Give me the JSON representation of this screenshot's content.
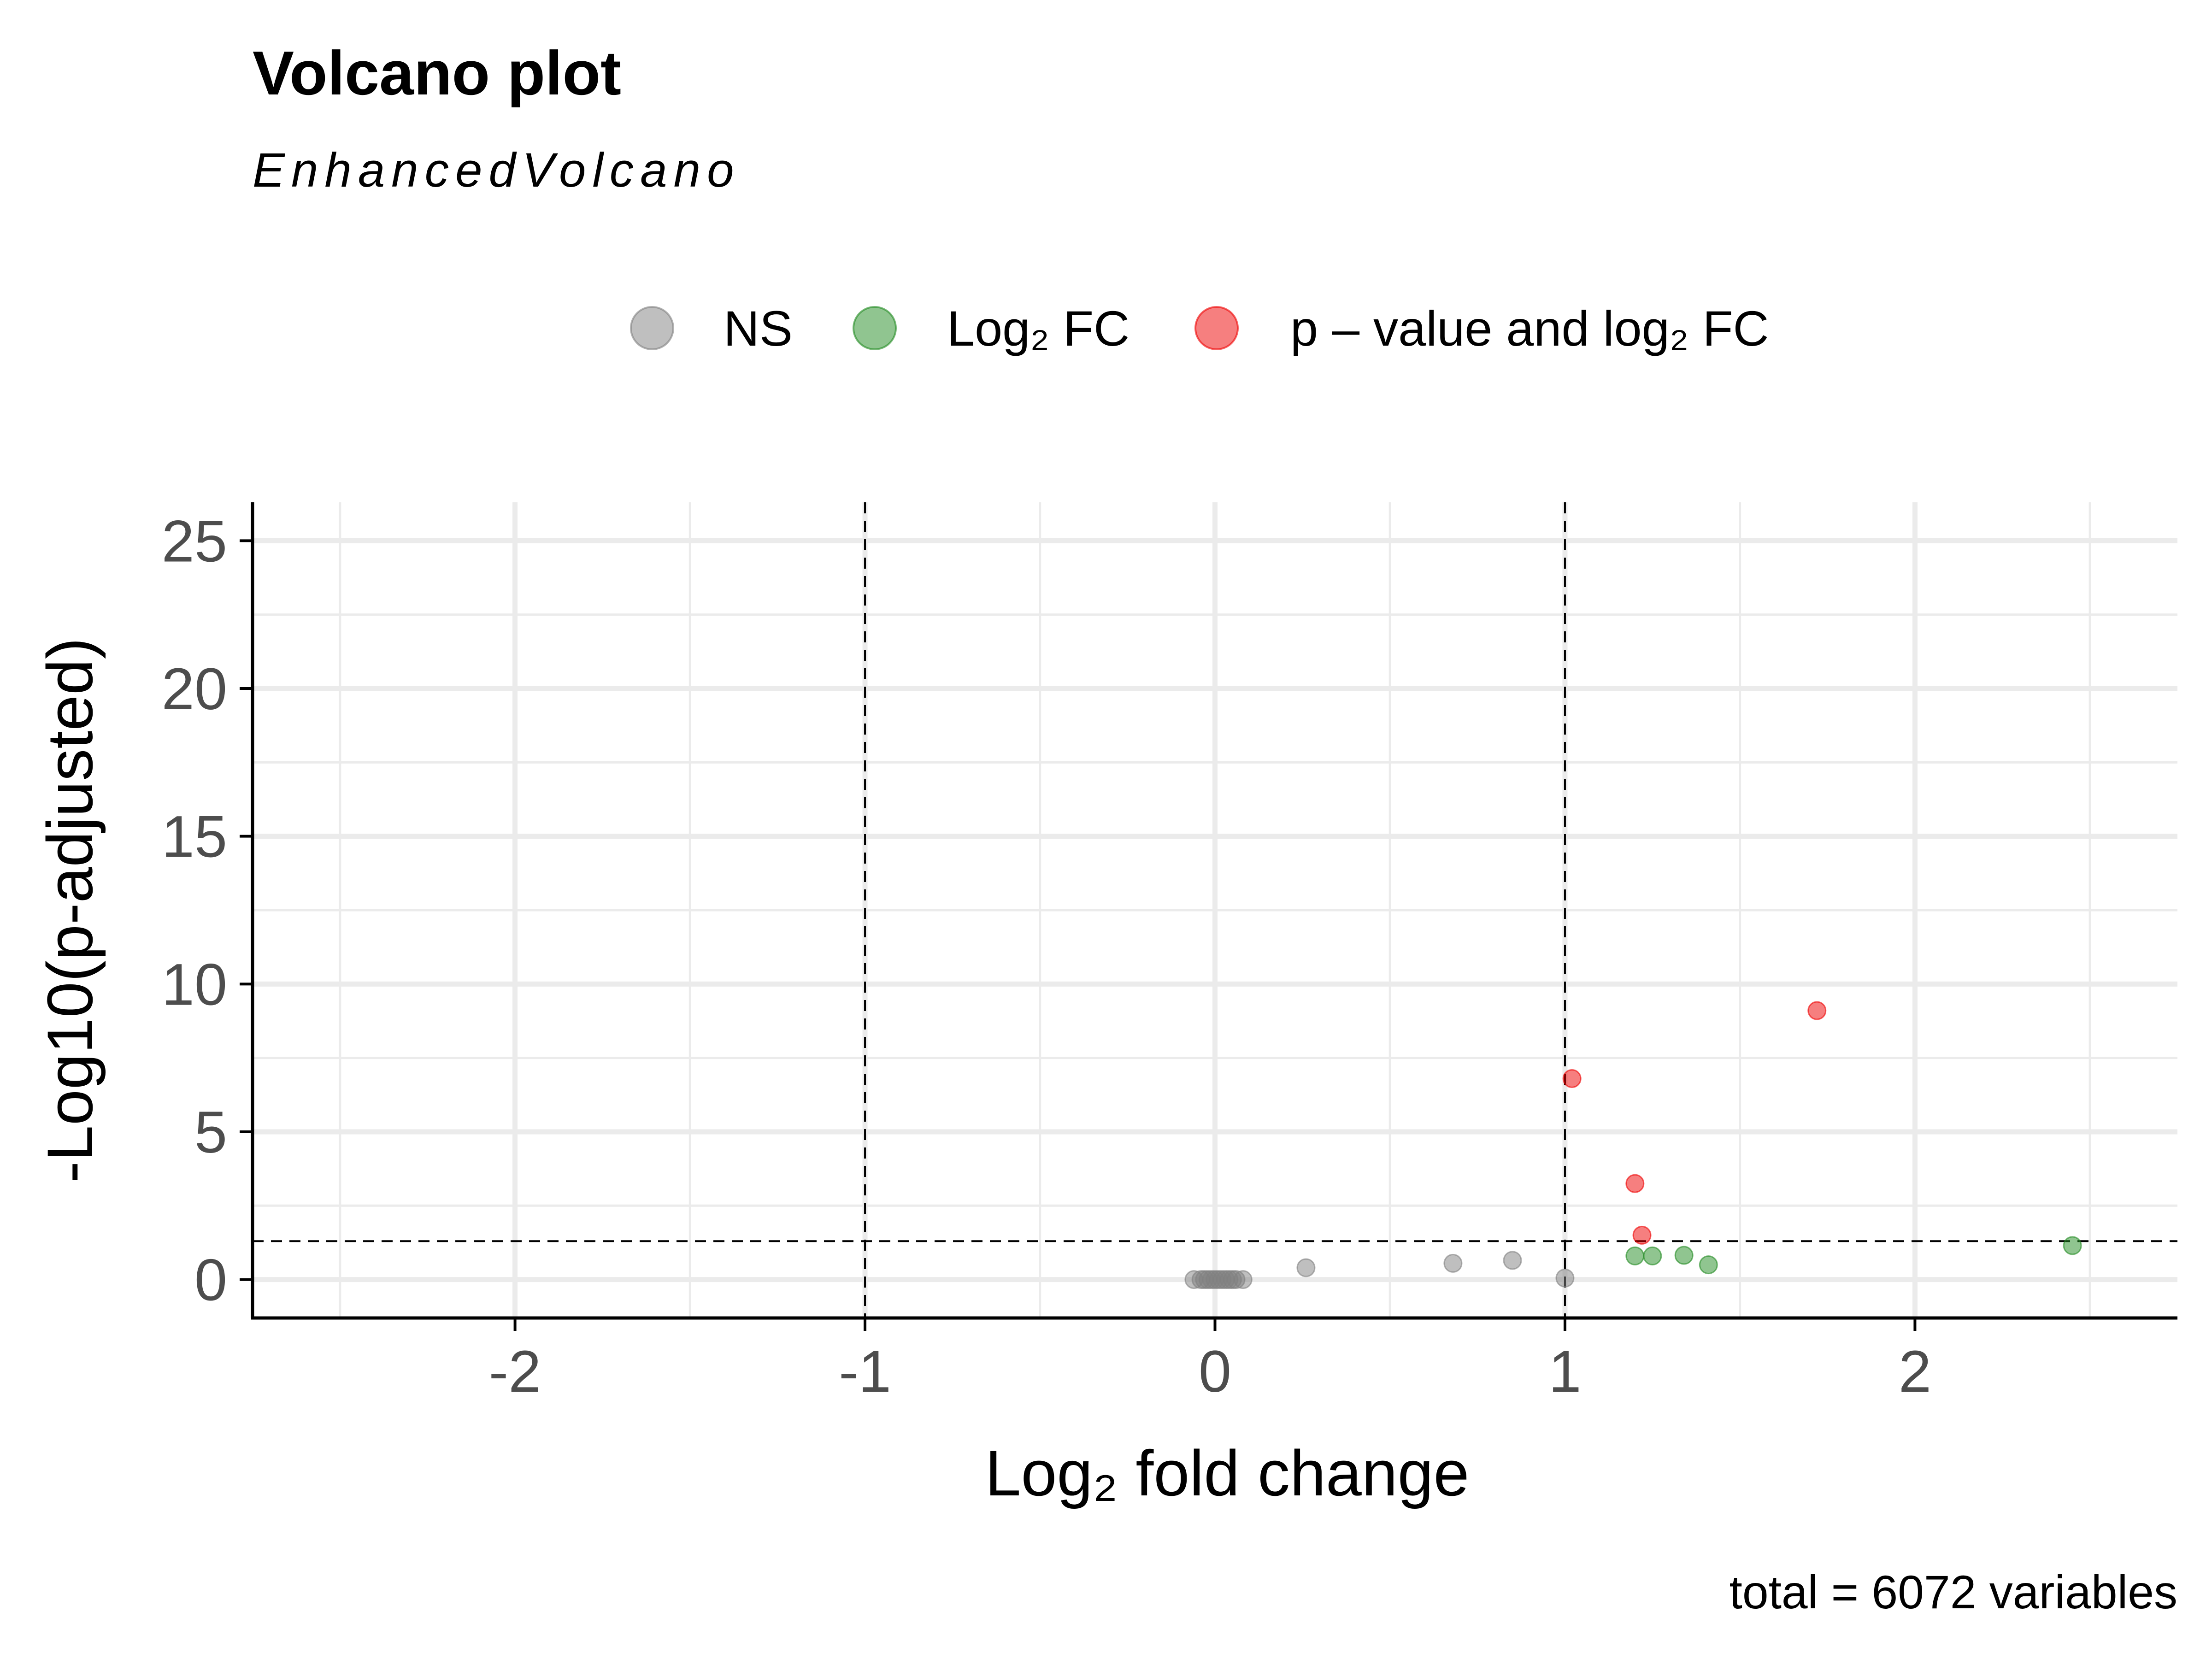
{
  "chart_data": {
    "type": "scatter",
    "title": "Volcano plot",
    "subtitle": "EnhancedVolcano",
    "xlabel": "Log₂ fold change",
    "ylabel": "-Log10(p-adjusted)",
    "caption": "total = 6072 variables",
    "xlim": [
      -2.75,
      2.75
    ],
    "ylim": [
      -1.3,
      26.3
    ],
    "x_ticks": [
      -2,
      -1,
      0,
      1,
      2
    ],
    "x_tick_labels": [
      "-2",
      "-1",
      "0",
      "1",
      "2"
    ],
    "y_ticks": [
      0,
      5,
      10,
      15,
      20,
      25
    ],
    "y_tick_labels": [
      "0",
      "5",
      "10",
      "15",
      "20",
      "25"
    ],
    "grid": true,
    "legend_position": "top",
    "cutoffs": {
      "fc": [
        -1,
        1
      ],
      "p": 1.3
    },
    "series": [
      {
        "name": "NS",
        "color": "#808080",
        "points": [
          {
            "x": -0.06,
            "y": 0.0
          },
          {
            "x": -0.04,
            "y": 0.0
          },
          {
            "x": -0.03,
            "y": 0.0
          },
          {
            "x": -0.02,
            "y": 0.0
          },
          {
            "x": -0.01,
            "y": 0.0
          },
          {
            "x": 0.0,
            "y": 0.0
          },
          {
            "x": 0.01,
            "y": 0.0
          },
          {
            "x": 0.02,
            "y": 0.0
          },
          {
            "x": 0.03,
            "y": 0.0
          },
          {
            "x": 0.04,
            "y": 0.0
          },
          {
            "x": 0.05,
            "y": 0.0
          },
          {
            "x": 0.06,
            "y": 0.0
          },
          {
            "x": 0.08,
            "y": 0.0
          },
          {
            "x": 0.26,
            "y": 0.4
          },
          {
            "x": 0.68,
            "y": 0.55
          },
          {
            "x": 0.85,
            "y": 0.65
          },
          {
            "x": 1.0,
            "y": 0.05
          }
        ]
      },
      {
        "name": "Log₂ FC",
        "color": "#228B22",
        "points": [
          {
            "x": 1.2,
            "y": 0.8
          },
          {
            "x": 1.25,
            "y": 0.8
          },
          {
            "x": 1.34,
            "y": 0.82
          },
          {
            "x": 1.41,
            "y": 0.5
          },
          {
            "x": 2.45,
            "y": 1.15
          }
        ]
      },
      {
        "name": "p – value and log₂ FC",
        "color": "#EE0000",
        "points": [
          {
            "x": 1.02,
            "y": 6.8
          },
          {
            "x": 1.2,
            "y": 3.25
          },
          {
            "x": 1.22,
            "y": 1.5
          },
          {
            "x": 1.72,
            "y": 9.1
          }
        ]
      }
    ]
  }
}
